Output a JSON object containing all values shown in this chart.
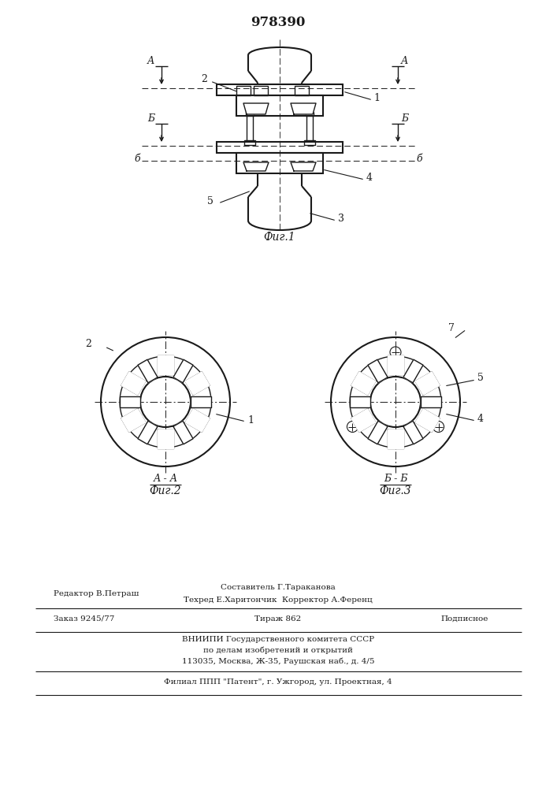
{
  "patent_number": "978390",
  "background_color": "#ffffff",
  "line_color": "#1a1a1a",
  "fig1_caption": "Фиг.1",
  "fig2_caption": "Фиг.2",
  "fig3_caption": "Фиг.3",
  "section_aa": "А - А",
  "section_bb": "Б - Б",
  "footer_line1_left": "Редактор В.Петраш",
  "footer_line1_mid": "Составитель Г.Тараканова",
  "footer_line2_mid": "Техред Е.Харитончик  Корректор А.Ференц",
  "footer_line3_left": "Заказ 9245/77",
  "footer_line3_mid": "Тираж 862",
  "footer_line3_right": "Подписное",
  "footer_line4": "ВНИИПИ Государственного комитета СССР",
  "footer_line5": "по делам изобретений и открытий",
  "footer_line6": "113035, Москва, Ж-35, Раушская наб., д. 4/5",
  "footer_line7": "Филиал ППП \"Патент\", г. Ужгород, ул. Проектная, 4"
}
